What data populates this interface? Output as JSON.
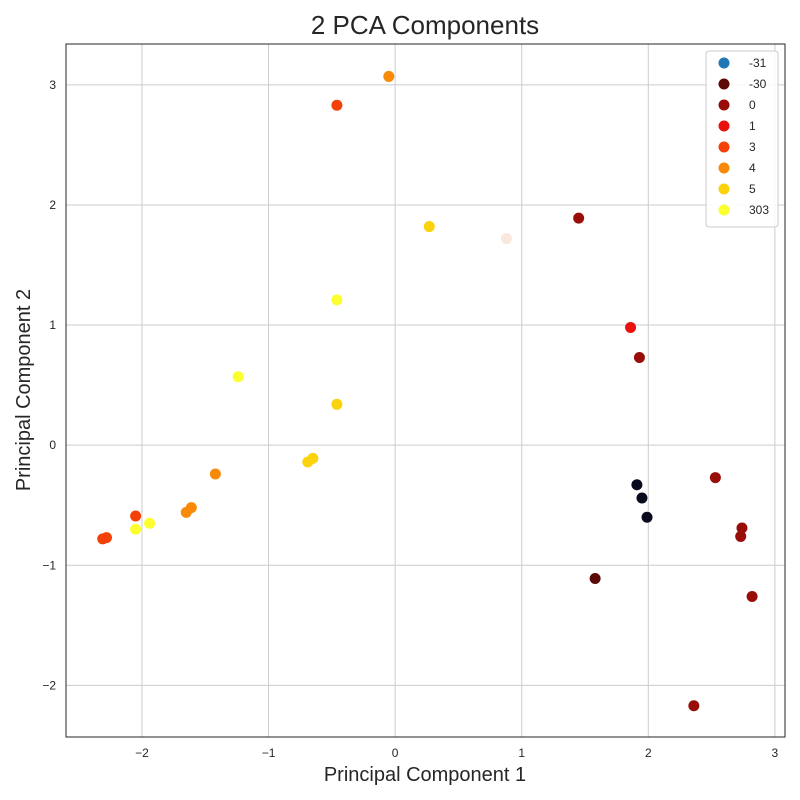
{
  "chart_data": {
    "type": "scatter",
    "title": "2 PCA Components",
    "xlabel": "Principal Component 1",
    "ylabel": "Principal Component 2",
    "xlim": [
      -2.6,
      3.08
    ],
    "ylim": [
      -2.43,
      3.34
    ],
    "xticks": [
      -2,
      -1,
      0,
      1,
      2,
      3
    ],
    "yticks": [
      -2,
      -1,
      0,
      1,
      2,
      3
    ],
    "xtick_labels": [
      "−2",
      "−1",
      "0",
      "1",
      "2",
      "3"
    ],
    "ytick_labels": [
      "−2",
      "−1",
      "0",
      "1",
      "2",
      "3"
    ],
    "grid": true,
    "legend_position": "top-right",
    "series": [
      {
        "name": "-31",
        "color": "#1f77b4",
        "points": []
      },
      {
        "name": "-30",
        "color": "#0a0a1e",
        "points": [
          [
            1.91,
            -0.33
          ],
          [
            1.95,
            -0.44
          ],
          [
            1.99,
            -0.6
          ]
        ]
      },
      {
        "name": "-30",
        "color": "#5c0a06",
        "points": [
          [
            1.58,
            -1.11
          ]
        ]
      },
      {
        "name": "0",
        "color": "#990d08",
        "points": [
          [
            1.45,
            1.89
          ],
          [
            1.93,
            0.73
          ],
          [
            2.53,
            -0.27
          ],
          [
            2.74,
            -0.69
          ],
          [
            2.73,
            -0.76
          ],
          [
            2.82,
            -1.26
          ],
          [
            2.36,
            -2.17
          ]
        ]
      },
      {
        "name": "1",
        "color": "#e8110d",
        "points": [
          [
            1.86,
            0.98
          ]
        ]
      },
      {
        "name": "3",
        "color": "#f44108",
        "points": [
          [
            -0.46,
            2.83
          ],
          [
            -2.05,
            -0.59
          ],
          [
            -2.31,
            -0.78
          ],
          [
            -2.28,
            -0.77
          ]
        ]
      },
      {
        "name": "4",
        "color": "#f98a09",
        "points": [
          [
            -0.05,
            3.07
          ],
          [
            -1.42,
            -0.24
          ],
          [
            -1.65,
            -0.56
          ],
          [
            -1.61,
            -0.52
          ]
        ]
      },
      {
        "name": "5",
        "color": "#fbd30d",
        "points": [
          [
            0.27,
            1.82
          ],
          [
            -0.46,
            0.34
          ],
          [
            -0.69,
            -0.14
          ],
          [
            -0.65,
            -0.11
          ]
        ]
      },
      {
        "name": "303",
        "color": "#fcff2e",
        "points": [
          [
            -0.46,
            1.21
          ],
          [
            -1.24,
            0.57
          ],
          [
            -2.05,
            -0.7
          ],
          [
            -1.94,
            -0.65
          ]
        ]
      },
      {
        "name": "",
        "color": "#fbe8dc",
        "points": [
          [
            0.88,
            1.72
          ]
        ]
      }
    ],
    "legend": [
      {
        "label": "-31",
        "color": "#1f77b4"
      },
      {
        "label": "-30",
        "color": "#5c0a06"
      },
      {
        "label": "0",
        "color": "#990d08"
      },
      {
        "label": "1",
        "color": "#e8110d"
      },
      {
        "label": "3",
        "color": "#f44108"
      },
      {
        "label": "4",
        "color": "#f98a09"
      },
      {
        "label": "5",
        "color": "#fbd30d"
      },
      {
        "label": "303",
        "color": "#fcff2e"
      }
    ]
  }
}
